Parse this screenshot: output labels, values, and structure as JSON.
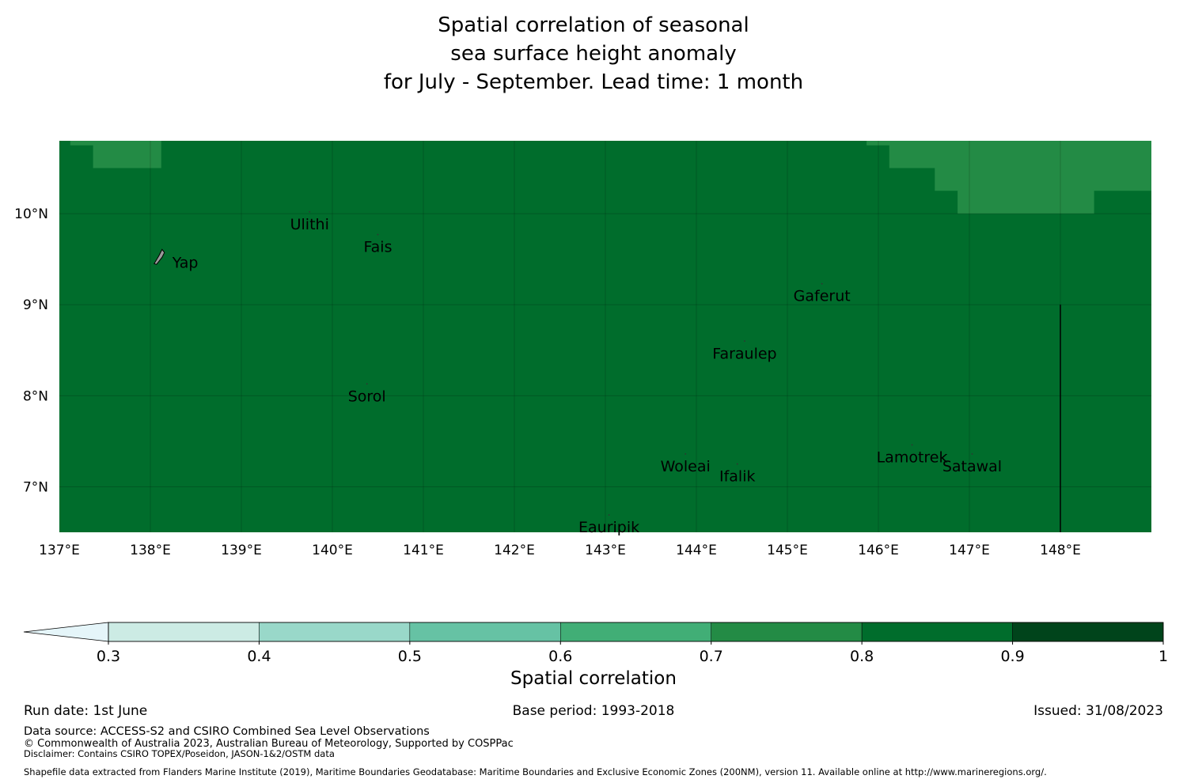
{
  "title": {
    "line1": "Spatial correlation of seasonal",
    "line2": "sea surface height anomaly",
    "line3": "for July - September. Lead time: 1 month"
  },
  "map": {
    "lon_range": [
      137,
      149
    ],
    "lat_range": [
      6.5,
      10.8
    ],
    "lon_ticks": [
      {
        "value": 137,
        "label": "137°E"
      },
      {
        "value": 138,
        "label": "138°E"
      },
      {
        "value": 139,
        "label": "139°E"
      },
      {
        "value": 140,
        "label": "140°E"
      },
      {
        "value": 141,
        "label": "141°E"
      },
      {
        "value": 142,
        "label": "142°E"
      },
      {
        "value": 143,
        "label": "143°E"
      },
      {
        "value": 144,
        "label": "144°E"
      },
      {
        "value": 145,
        "label": "145°E"
      },
      {
        "value": 146,
        "label": "146°E"
      },
      {
        "value": 147,
        "label": "147°E"
      },
      {
        "value": 148,
        "label": "148°E"
      }
    ],
    "lat_ticks": [
      {
        "value": 10,
        "label": "10°N"
      },
      {
        "value": 9,
        "label": "9°N"
      },
      {
        "value": 8,
        "label": "8°N"
      },
      {
        "value": 7,
        "label": "7°N"
      }
    ],
    "background_band": "0.8-0.9",
    "field_regions": [
      {
        "band": "0.7-0.8",
        "polygon": [
          [
            137.12,
            10.8
          ],
          [
            137.12,
            10.75
          ],
          [
            137.37,
            10.75
          ],
          [
            137.37,
            10.5
          ],
          [
            138.12,
            10.5
          ],
          [
            138.12,
            10.8
          ]
        ]
      },
      {
        "band": "0.7-0.8",
        "polygon": [
          [
            145.87,
            10.8
          ],
          [
            145.87,
            10.75
          ],
          [
            146.12,
            10.75
          ],
          [
            146.12,
            10.5
          ],
          [
            146.62,
            10.5
          ],
          [
            146.62,
            10.25
          ],
          [
            146.87,
            10.25
          ],
          [
            146.87,
            10.0
          ],
          [
            148.37,
            10.0
          ],
          [
            148.37,
            10.25
          ],
          [
            149.0,
            10.25
          ],
          [
            149.0,
            10.8
          ]
        ]
      }
    ],
    "boundary_line": {
      "lon": 148.0,
      "lat_from": 6.5,
      "lat_to": 9.0
    },
    "places": [
      {
        "name": "Yap",
        "lon": 138.12,
        "lat": 9.52,
        "island": true
      },
      {
        "name": "Ulithi",
        "lon": 139.75,
        "lat": 10.02
      },
      {
        "name": "Fais",
        "lon": 140.5,
        "lat": 9.77
      },
      {
        "name": "Gaferut",
        "lon": 145.38,
        "lat": 9.23
      },
      {
        "name": "Faraulep",
        "lon": 144.53,
        "lat": 8.6
      },
      {
        "name": "Sorol",
        "lon": 140.38,
        "lat": 8.13
      },
      {
        "name": "Woleai",
        "lon": 143.88,
        "lat": 7.36
      },
      {
        "name": "Ifalik",
        "lon": 144.45,
        "lat": 7.25
      },
      {
        "name": "Lamotrek",
        "lon": 146.37,
        "lat": 7.46
      },
      {
        "name": "Satawal",
        "lon": 147.03,
        "lat": 7.36
      },
      {
        "name": "Eauripik",
        "lon": 143.04,
        "lat": 6.69
      }
    ]
  },
  "colorbar": {
    "label": "Spatial correlation",
    "extend": "min",
    "bands": [
      {
        "range": "0.3-0.4",
        "color": "#ccebe4"
      },
      {
        "range": "0.4-0.5",
        "color": "#99d8c9"
      },
      {
        "range": "0.5-0.6",
        "color": "#66c2a4"
      },
      {
        "range": "0.6-0.7",
        "color": "#41ae76"
      },
      {
        "range": "0.7-0.8",
        "color": "#238b45"
      },
      {
        "range": "0.8-0.9",
        "color": "#006d2c"
      },
      {
        "range": "0.9-1",
        "color": "#00441b"
      }
    ],
    "under_color": "#e5f5f9",
    "ticks": [
      "0.3",
      "0.4",
      "0.5",
      "0.6",
      "0.7",
      "0.8",
      "0.9",
      "1"
    ]
  },
  "footer": {
    "run_date": "Run date: 1st June",
    "base_period": "Base period: 1993-2018",
    "issued": "Issued: 31/08/2023",
    "data_source": "Data source: ACCESS-S2 and CSIRO Combined Sea Level Observations",
    "copyright": "© Commonwealth of Australia 2023, Australian Bureau of Meteorology, Supported by COSPPac",
    "disclaimer": "Disclaimer: Contains CSIRO TOPEX/Poseidon, JASON-1&2/OSTM data",
    "shapefile": "Shapefile data extracted from Flanders Marine Institute (2019), Maritime Boundaries Geodatabase: Maritime Boundaries and Exclusive Economic Zones (200NM), version 11. Available online at http://www.marineregions.org/."
  }
}
